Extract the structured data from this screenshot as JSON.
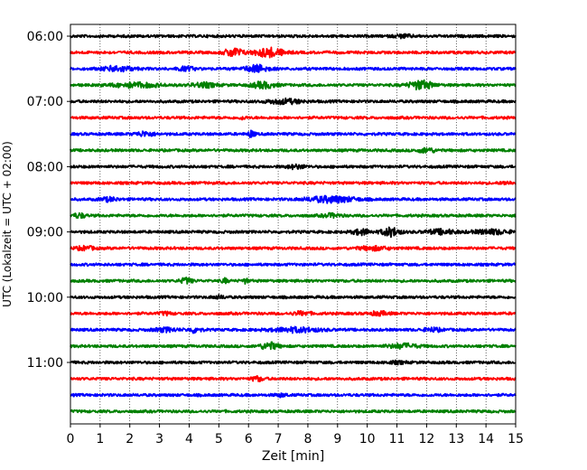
{
  "chart_data": {
    "type": "line",
    "title": "",
    "xlabel": "Zeit  [min]",
    "ylabel": "UTC (Lokalzeit = UTC + 02:00)",
    "xlim": [
      0,
      15
    ],
    "x_ticks": [
      "0",
      "1",
      "2",
      "3",
      "4",
      "5",
      "6",
      "7",
      "8",
      "9",
      "10",
      "11",
      "12",
      "13",
      "14",
      "15"
    ],
    "y_tick_labels": [
      "06:00",
      "07:00",
      "08:00",
      "09:00",
      "10:00",
      "11:00"
    ],
    "grid": "vertical dotted lines at each minute",
    "trace_interval_minutes": 15,
    "trace_count": 24,
    "trace_colors": [
      "#000000",
      "#ff0000",
      "#0000ff",
      "#008000"
    ],
    "traces": [
      {
        "start": "06:00",
        "events": [
          {
            "t": 11.2,
            "amp": 1.6,
            "w": 0.3
          }
        ]
      },
      {
        "start": "06:15",
        "events": [
          {
            "t": 5.5,
            "amp": 5,
            "w": 0.3
          },
          {
            "t": 6.7,
            "amp": 5,
            "w": 0.5
          }
        ]
      },
      {
        "start": "06:30",
        "events": [
          {
            "t": 1.6,
            "amp": 3,
            "w": 0.5
          },
          {
            "t": 3.9,
            "amp": 2,
            "w": 0.3
          },
          {
            "t": 6.3,
            "amp": 4,
            "w": 0.4
          }
        ]
      },
      {
        "start": "06:45",
        "events": [
          {
            "t": 2.2,
            "amp": 2.5,
            "w": 0.8
          },
          {
            "t": 4.5,
            "amp": 2.5,
            "w": 0.4
          },
          {
            "t": 6.5,
            "amp": 3.5,
            "w": 0.4
          },
          {
            "t": 11.8,
            "amp": 5,
            "w": 0.4
          }
        ]
      },
      {
        "start": "07:00",
        "events": [
          {
            "t": 7.2,
            "amp": 2.5,
            "w": 0.6
          }
        ]
      },
      {
        "start": "07:15",
        "events": [
          {
            "t": 5.8,
            "amp": 1.5,
            "w": 0.1
          }
        ]
      },
      {
        "start": "07:30",
        "events": [
          {
            "t": 2.5,
            "amp": 2.5,
            "w": 0.3
          },
          {
            "t": 6.1,
            "amp": 4,
            "w": 0.1
          }
        ]
      },
      {
        "start": "07:45",
        "events": [
          {
            "t": 12.0,
            "amp": 2.5,
            "w": 0.3
          }
        ]
      },
      {
        "start": "08:00",
        "events": [
          {
            "t": 7.6,
            "amp": 2,
            "w": 0.3
          }
        ]
      },
      {
        "start": "08:15",
        "events": [
          {
            "t": 14.7,
            "amp": 1.5,
            "w": 0.2
          }
        ]
      },
      {
        "start": "08:30",
        "events": [
          {
            "t": 1.3,
            "amp": 2,
            "w": 0.3
          },
          {
            "t": 8.8,
            "amp": 3.5,
            "w": 0.8
          }
        ]
      },
      {
        "start": "08:45",
        "events": [
          {
            "t": 0.3,
            "amp": 2.5,
            "w": 0.2
          },
          {
            "t": 8.8,
            "amp": 2,
            "w": 0.3
          }
        ]
      },
      {
        "start": "09:00",
        "events": [
          {
            "t": 9.8,
            "amp": 3,
            "w": 0.3
          },
          {
            "t": 10.8,
            "amp": 5,
            "w": 0.3
          },
          {
            "t": 12.5,
            "amp": 2.5,
            "w": 0.5
          },
          {
            "t": 14.2,
            "amp": 2.5,
            "w": 0.6
          }
        ]
      },
      {
        "start": "09:15",
        "events": [
          {
            "t": 0.5,
            "amp": 2,
            "w": 0.3
          },
          {
            "t": 10.2,
            "amp": 2,
            "w": 0.5
          }
        ]
      },
      {
        "start": "09:30",
        "events": []
      },
      {
        "start": "09:45",
        "events": [
          {
            "t": 3.9,
            "amp": 3,
            "w": 0.2
          },
          {
            "t": 5.2,
            "amp": 2.5,
            "w": 0.1
          },
          {
            "t": 5.9,
            "amp": 2.5,
            "w": 0.1
          }
        ]
      },
      {
        "start": "10:00",
        "events": [
          {
            "t": 5.0,
            "amp": 1.5,
            "w": 0.2
          }
        ]
      },
      {
        "start": "10:15",
        "events": [
          {
            "t": 3.2,
            "amp": 1.5,
            "w": 0.2
          },
          {
            "t": 7.8,
            "amp": 2,
            "w": 0.3
          },
          {
            "t": 10.4,
            "amp": 2,
            "w": 0.3
          }
        ]
      },
      {
        "start": "10:30",
        "events": [
          {
            "t": 3.2,
            "amp": 2,
            "w": 0.4
          },
          {
            "t": 4.2,
            "amp": 3,
            "w": 0.2
          },
          {
            "t": 7.6,
            "amp": 2.5,
            "w": 0.8
          },
          {
            "t": 12.2,
            "amp": 2,
            "w": 0.3
          }
        ]
      },
      {
        "start": "10:45",
        "events": [
          {
            "t": 6.7,
            "amp": 4,
            "w": 0.3
          },
          {
            "t": 11.2,
            "amp": 2.5,
            "w": 0.5
          }
        ]
      },
      {
        "start": "11:00",
        "events": [
          {
            "t": 11.0,
            "amp": 1.2,
            "w": 0.3
          }
        ]
      },
      {
        "start": "11:15",
        "events": [
          {
            "t": 6.3,
            "amp": 2.5,
            "w": 0.2
          }
        ]
      },
      {
        "start": "11:30",
        "events": [
          {
            "t": 7.1,
            "amp": 1.5,
            "w": 0.2
          }
        ]
      },
      {
        "start": "11:45",
        "events": []
      }
    ]
  }
}
